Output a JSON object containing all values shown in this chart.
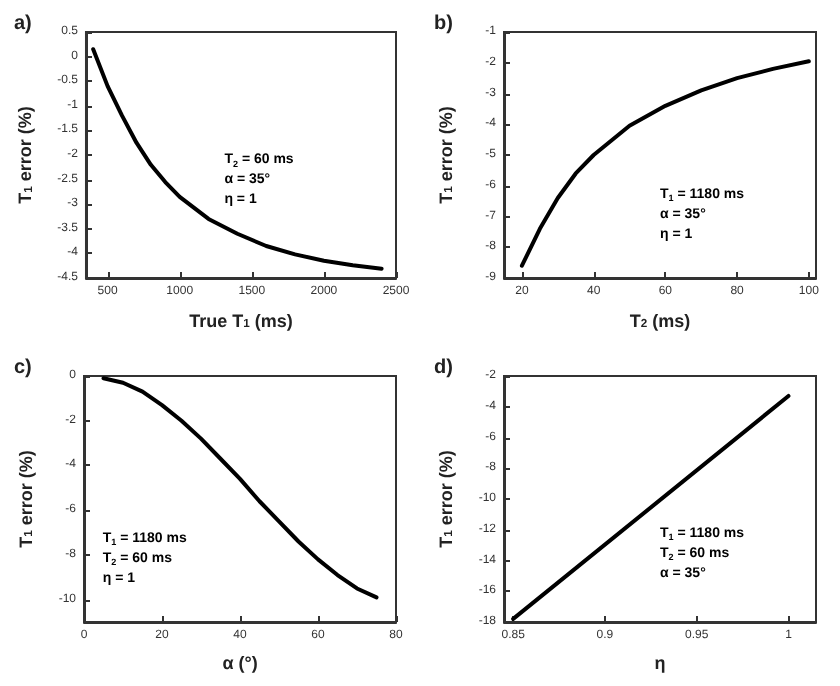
{
  "chart_data": [
    {
      "type": "line",
      "title": "a)",
      "xlabel": "True T$_{1}$ (ms)",
      "ylabel": "T$_{1}$ error (%)",
      "xlim": [
        350,
        2500
      ],
      "xticks": [
        500,
        1000,
        1500,
        2000,
        2500
      ],
      "ylim": [
        -4.5,
        0.5
      ],
      "yticks": [
        -4.5,
        -4,
        -3.5,
        -3,
        -2.5,
        -2,
        -1.5,
        -1,
        -0.5,
        0,
        0.5
      ],
      "grid": false,
      "annotations": [
        "T$_{2}$ = 60 ms",
        "α = 35°",
        "η = 1"
      ],
      "x": [
        400,
        500,
        600,
        700,
        800,
        900,
        1000,
        1200,
        1400,
        1600,
        1800,
        2000,
        2200,
        2400
      ],
      "series": [
        {
          "color": "#000000",
          "values": [
            0.15,
            -0.6,
            -1.2,
            -1.75,
            -2.2,
            -2.55,
            -2.85,
            -3.3,
            -3.6,
            -3.85,
            -4.02,
            -4.15,
            -4.24,
            -4.31
          ]
        }
      ]
    },
    {
      "type": "line",
      "title": "b)",
      "xlabel": "T$_{2}$ (ms)",
      "ylabel": "T$_{1}$ error (%)",
      "xlim": [
        15,
        102
      ],
      "xticks": [
        20,
        40,
        60,
        80,
        100
      ],
      "ylim": [
        -9,
        -1
      ],
      "yticks": [
        -9,
        -8,
        -7,
        -6,
        -5,
        -4,
        -3,
        -2,
        -1
      ],
      "grid": false,
      "annotations": [
        "T$_{1}$ = 1180 ms",
        "α = 35°",
        "η = 1"
      ],
      "x": [
        20,
        25,
        30,
        35,
        40,
        50,
        60,
        70,
        80,
        90,
        100
      ],
      "series": [
        {
          "color": "#000000",
          "values": [
            -8.6,
            -7.4,
            -6.4,
            -5.6,
            -5.0,
            -4.05,
            -3.4,
            -2.9,
            -2.5,
            -2.2,
            -1.95
          ]
        }
      ]
    },
    {
      "type": "line",
      "title": "c)",
      "xlabel": "α (°)",
      "ylabel": "T$_{1}$ error (%)",
      "xlim": [
        0,
        80
      ],
      "xticks": [
        0,
        20,
        40,
        60,
        80
      ],
      "ylim": [
        -11,
        0
      ],
      "yticks": [
        -10,
        -8,
        -6,
        -4,
        -2,
        0
      ],
      "grid": false,
      "annotations": [
        "T$_{1}$ = 1180 ms",
        "T$_{2}$ = 60 ms",
        "η = 1"
      ],
      "x": [
        5,
        10,
        15,
        20,
        25,
        30,
        35,
        40,
        45,
        50,
        55,
        60,
        65,
        70,
        75
      ],
      "series": [
        {
          "color": "#000000",
          "values": [
            -0.1,
            -0.3,
            -0.7,
            -1.3,
            -2.0,
            -2.8,
            -3.7,
            -4.6,
            -5.6,
            -6.5,
            -7.4,
            -8.2,
            -8.9,
            -9.5,
            -9.9
          ]
        }
      ]
    },
    {
      "type": "line",
      "title": "d)",
      "xlabel": "η",
      "ylabel": "T$_{1}$ error (%)",
      "xlim": [
        0.845,
        1.015
      ],
      "xticks": [
        0.85,
        0.9,
        0.95,
        1
      ],
      "ylim": [
        -18,
        -2
      ],
      "yticks": [
        -18,
        -16,
        -14,
        -12,
        -10,
        -8,
        -6,
        -4,
        -2
      ],
      "grid": false,
      "annotations": [
        "T$_{1}$ = 1180 ms",
        "T$_{2}$ = 60 ms",
        "α = 35°"
      ],
      "x": [
        0.85,
        1
      ],
      "series": [
        {
          "color": "#000000",
          "values": [
            -17.8,
            -3.3
          ]
        }
      ]
    }
  ]
}
